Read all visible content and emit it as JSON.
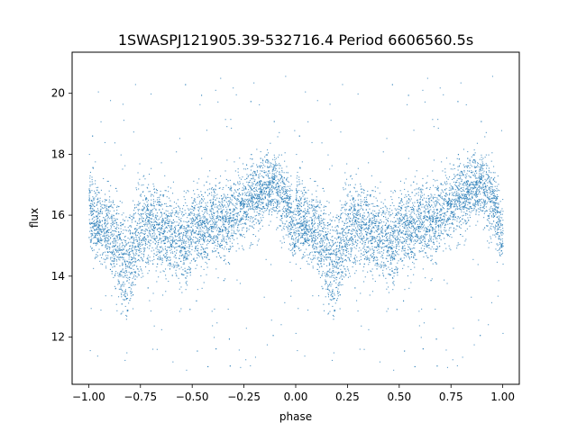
{
  "chart_data": {
    "type": "scatter",
    "title": "1SWASPJ121905.39-532716.4 Period 6606560.5s",
    "xlabel": "phase",
    "ylabel": "flux",
    "xlim": [
      -1.08,
      1.08
    ],
    "ylim": [
      10.45,
      21.35
    ],
    "x_ticks": [
      -1.0,
      -0.75,
      -0.5,
      -0.25,
      0.0,
      0.25,
      0.5,
      0.75,
      1.0
    ],
    "x_tick_labels": [
      "−1.00",
      "−0.75",
      "−0.50",
      "−0.25",
      "0.00",
      "0.25",
      "0.50",
      "0.75",
      "1.00"
    ],
    "y_ticks": [
      12,
      14,
      16,
      18,
      20
    ],
    "y_tick_labels": [
      "12",
      "14",
      "16",
      "18",
      "20"
    ],
    "grid": false,
    "marker_color": "#1f77b4",
    "profile": {
      "phase": [
        0.0,
        0.02,
        0.05,
        0.1,
        0.15,
        0.18,
        0.22,
        0.28,
        0.35,
        0.4,
        0.45,
        0.5,
        0.55,
        0.6,
        0.65,
        0.7,
        0.75,
        0.8,
        0.85,
        0.9,
        0.95,
        1.0
      ],
      "median_flux": [
        16.3,
        15.8,
        15.7,
        15.5,
        14.8,
        14.2,
        15.0,
        15.8,
        15.5,
        15.3,
        15.1,
        15.4,
        15.5,
        15.8,
        15.9,
        16.1,
        16.3,
        16.6,
        16.9,
        17.0,
        16.5,
        15.2
      ],
      "scatter": [
        0.9,
        0.8,
        0.8,
        0.9,
        1.0,
        1.1,
        1.0,
        0.9,
        0.9,
        0.9,
        0.9,
        0.8,
        0.8,
        0.8,
        0.8,
        0.8,
        0.8,
        0.8,
        0.7,
        0.7,
        0.8,
        0.6
      ]
    },
    "point_count_per_cycle": 4500,
    "outlier_range": [
      10.9,
      20.6
    ]
  }
}
